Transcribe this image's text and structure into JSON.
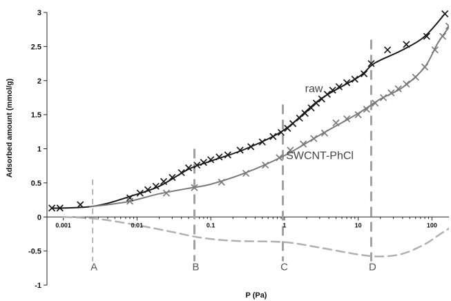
{
  "chart_data": {
    "type": "line",
    "xlabel": "P (Pa)",
    "ylabel": "Adsorbed amount (mmol/g)",
    "xscale": "log",
    "xlim": [
      0.0006,
      170
    ],
    "ylim": [
      -1,
      3
    ],
    "yticks": [
      "3",
      "2.5",
      "2",
      "1.5",
      "1",
      "0.5",
      "0",
      "-0.5",
      "-1"
    ],
    "ytick_values": [
      3,
      2.5,
      2,
      1.5,
      1,
      0.5,
      0,
      -0.5,
      -1
    ],
    "xticks": [
      "0.001",
      "0.01",
      "0.1",
      "1",
      "10",
      "100"
    ],
    "xtick_values": [
      0.001,
      0.01,
      0.1,
      1,
      10,
      100
    ],
    "series": [
      {
        "name": "raw",
        "color": "#1a1a1a",
        "style": "solid line with x markers",
        "curve": [
          [
            0.0007,
            0.13
          ],
          [
            0.001,
            0.13
          ],
          [
            0.0023,
            0.15
          ],
          [
            0.004,
            0.2
          ],
          [
            0.008,
            0.3
          ],
          [
            0.02,
            0.45
          ],
          [
            0.05,
            0.7
          ],
          [
            0.1,
            0.82
          ],
          [
            0.3,
            1.0
          ],
          [
            1,
            1.28
          ],
          [
            3,
            1.72
          ],
          [
            10,
            2.05
          ],
          [
            15,
            2.22
          ],
          [
            20,
            2.3
          ],
          [
            40,
            2.45
          ],
          [
            80,
            2.65
          ],
          [
            150,
            2.98
          ]
        ],
        "markers": [
          [
            0.0007,
            0.13
          ],
          [
            0.0009,
            0.13
          ],
          [
            0.0017,
            0.18
          ],
          [
            0.008,
            0.28
          ],
          [
            0.011,
            0.35
          ],
          [
            0.014,
            0.4
          ],
          [
            0.018,
            0.45
          ],
          [
            0.023,
            0.52
          ],
          [
            0.03,
            0.58
          ],
          [
            0.04,
            0.65
          ],
          [
            0.05,
            0.72
          ],
          [
            0.065,
            0.76
          ],
          [
            0.08,
            0.8
          ],
          [
            0.1,
            0.84
          ],
          [
            0.13,
            0.88
          ],
          [
            0.17,
            0.91
          ],
          [
            0.25,
            0.98
          ],
          [
            0.35,
            1.03
          ],
          [
            0.5,
            1.1
          ],
          [
            0.7,
            1.18
          ],
          [
            0.9,
            1.24
          ],
          [
            1.1,
            1.3
          ],
          [
            1.3,
            1.37
          ],
          [
            1.6,
            1.45
          ],
          [
            1.9,
            1.52
          ],
          [
            2.3,
            1.6
          ],
          [
            2.7,
            1.67
          ],
          [
            3.2,
            1.73
          ],
          [
            3.8,
            1.8
          ],
          [
            4.5,
            1.86
          ],
          [
            5.5,
            1.91
          ],
          [
            7,
            1.97
          ],
          [
            9,
            2.02
          ],
          [
            12,
            2.1
          ],
          [
            15,
            2.25
          ],
          [
            25,
            2.45
          ],
          [
            45,
            2.53
          ],
          [
            85,
            2.65
          ],
          [
            150,
            2.98
          ]
        ]
      },
      {
        "name": "SWCNT-PhCl",
        "color": "#7a7a7a",
        "style": "solid line with x markers",
        "curve": [
          [
            0.0023,
            0.15
          ],
          [
            0.004,
            0.18
          ],
          [
            0.008,
            0.23
          ],
          [
            0.02,
            0.34
          ],
          [
            0.05,
            0.42
          ],
          [
            0.1,
            0.48
          ],
          [
            0.3,
            0.65
          ],
          [
            1,
            0.9
          ],
          [
            3,
            1.2
          ],
          [
            10,
            1.52
          ],
          [
            20,
            1.73
          ],
          [
            40,
            1.9
          ],
          [
            80,
            2.2
          ],
          [
            120,
            2.55
          ],
          [
            180,
            2.82
          ]
        ],
        "markers": [
          [
            0.008,
            0.23
          ],
          [
            0.025,
            0.35
          ],
          [
            0.06,
            0.43
          ],
          [
            0.14,
            0.51
          ],
          [
            0.3,
            0.64
          ],
          [
            0.55,
            0.76
          ],
          [
            0.85,
            0.87
          ],
          [
            1.2,
            0.98
          ],
          [
            1.8,
            1.07
          ],
          [
            2.5,
            1.15
          ],
          [
            3.5,
            1.23
          ],
          [
            5,
            1.38
          ],
          [
            7,
            1.44
          ],
          [
            10,
            1.5
          ],
          [
            13,
            1.58
          ],
          [
            17,
            1.67
          ],
          [
            22,
            1.75
          ],
          [
            28,
            1.82
          ],
          [
            35,
            1.88
          ],
          [
            45,
            1.95
          ],
          [
            60,
            2.05
          ],
          [
            80,
            2.2
          ],
          [
            110,
            2.45
          ],
          [
            140,
            2.65
          ],
          [
            170,
            2.8
          ]
        ]
      },
      {
        "name": "",
        "color": "#b0b0b0",
        "style": "dashed line",
        "curve": [
          [
            0.001,
            0.0
          ],
          [
            0.003,
            -0.03
          ],
          [
            0.01,
            -0.12
          ],
          [
            0.03,
            -0.22
          ],
          [
            0.07,
            -0.3
          ],
          [
            0.2,
            -0.35
          ],
          [
            1,
            -0.37
          ],
          [
            3,
            -0.45
          ],
          [
            10,
            -0.55
          ],
          [
            20,
            -0.58
          ],
          [
            40,
            -0.54
          ],
          [
            80,
            -0.4
          ],
          [
            130,
            -0.25
          ],
          [
            170,
            -0.17
          ]
        ]
      }
    ],
    "region_labels": [
      {
        "label": "A",
        "x": 0.0025
      },
      {
        "label": "B",
        "x": 0.06
      },
      {
        "label": "C",
        "x": 0.95
      },
      {
        "label": "D",
        "x": 15
      }
    ],
    "series_labels": [
      "raw",
      "SWCNT-PhCl"
    ],
    "grid": false
  }
}
